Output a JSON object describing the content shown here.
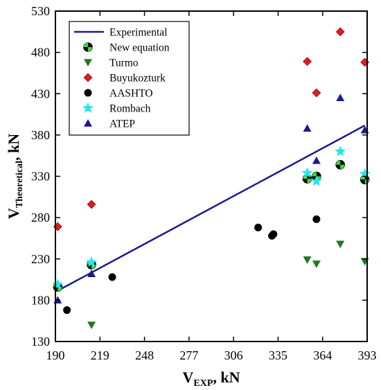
{
  "chart_data": {
    "type": "scatter",
    "title": "",
    "xlabel": {
      "main": "V",
      "sub": "EXP",
      "unit": ", kN"
    },
    "ylabel": {
      "main": "V",
      "sub": "Theoretical",
      "unit": ", kN"
    },
    "xlim": [
      190,
      393
    ],
    "ylim": [
      130,
      530
    ],
    "x_ticks": [
      190,
      219,
      248,
      277,
      306,
      335,
      364,
      393
    ],
    "y_ticks": [
      130,
      180,
      230,
      280,
      330,
      380,
      430,
      480,
      530
    ],
    "grid": false,
    "legend_position": "top-left",
    "line": {
      "name": "Experimental",
      "color": "#1a1a8c",
      "x": [
        191.5,
        391.5
      ],
      "y": [
        191.5,
        391.5
      ]
    },
    "series": [
      {
        "name": "New equation",
        "marker": "circle-quad",
        "color": "#3ddc3d",
        "points": [
          [
            191.5,
            196
          ],
          [
            213.5,
            223
          ],
          [
            354,
            327
          ],
          [
            360,
            330
          ],
          [
            375.5,
            344
          ],
          [
            391.5,
            326
          ]
        ]
      },
      {
        "name": "Turmo",
        "marker": "triangle-down",
        "color": "#1f7a1f",
        "points": [
          [
            213.5,
            150
          ],
          [
            354,
            229
          ],
          [
            360,
            224
          ],
          [
            375.5,
            248
          ],
          [
            391.5,
            227
          ]
        ]
      },
      {
        "name": "Buyukozturk",
        "marker": "diamond",
        "color": "#e31a1c",
        "points": [
          [
            191.5,
            269
          ],
          [
            213.5,
            296
          ],
          [
            354,
            469
          ],
          [
            360,
            431
          ],
          [
            375.5,
            505
          ],
          [
            391.5,
            468
          ]
        ]
      },
      {
        "name": "AASHTO",
        "marker": "circle",
        "color": "#000000",
        "points": [
          [
            197.5,
            168
          ],
          [
            227,
            208
          ],
          [
            322,
            268
          ],
          [
            331,
            258
          ],
          [
            332,
            260
          ],
          [
            360,
            278
          ]
        ]
      },
      {
        "name": "Rombach",
        "marker": "star",
        "color": "#22e5f5",
        "points": [
          [
            191.5,
            199
          ],
          [
            213.5,
            226
          ],
          [
            354,
            334
          ],
          [
            360,
            324
          ],
          [
            375.5,
            360
          ],
          [
            391.5,
            333
          ]
        ]
      },
      {
        "name": "ATEP",
        "marker": "triangle-up",
        "color": "#1a1a8c",
        "points": [
          [
            191.5,
            180
          ],
          [
            213.5,
            212
          ],
          [
            354,
            388
          ],
          [
            360,
            349
          ],
          [
            375.5,
            425
          ],
          [
            391.5,
            386
          ]
        ]
      }
    ]
  }
}
